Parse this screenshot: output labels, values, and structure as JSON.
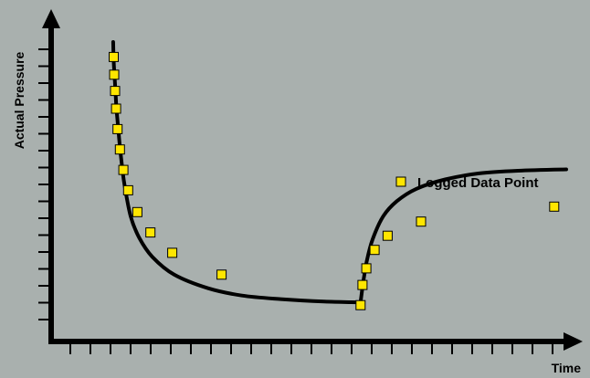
{
  "chart_data": {
    "type": "line",
    "title": "",
    "xlabel": "Time",
    "ylabel": "Actual Pressure",
    "xlim": [
      0,
      100
    ],
    "ylim": [
      0,
      100
    ],
    "grid": false,
    "legend": {
      "position": "right",
      "entries": [
        "Logged Data Point"
      ]
    },
    "ticks": {
      "x_count": 25,
      "y_count": 17,
      "x_labels": [],
      "y_labels": []
    },
    "series": [
      {
        "name": "",
        "style": "curve",
        "x": [
          6.4,
          6.5,
          6.7,
          6.9,
          7.1,
          7.5,
          8.0,
          8.7,
          10.0,
          11.8,
          14.5,
          19.0,
          26.0,
          33.0,
          41.0,
          50.0,
          57.5
        ],
        "y": [
          100,
          93,
          87,
          81,
          75,
          67,
          58,
          48,
          36,
          28,
          21,
          14.5,
          9.5,
          6.8,
          5.5,
          4.6,
          4.3
        ]
      },
      {
        "name": "",
        "style": "curve",
        "x": [
          57.5,
          58.0,
          58.8,
          60.0,
          62.2,
          65.0,
          69.0,
          75.0,
          82.0,
          90.0,
          100.0
        ],
        "y": [
          4.3,
          11.0,
          19.5,
          27.5,
          36.0,
          41.5,
          46.0,
          49.5,
          51.7,
          52.7,
          53.2
        ]
      },
      {
        "name": "Logged Data Point",
        "style": "markers",
        "x": [
          6.5,
          6.6,
          6.8,
          7.0,
          7.3,
          7.8,
          8.5,
          9.5,
          11.4,
          14.1,
          18.6,
          28.8,
          57.5,
          57.9,
          58.7,
          60.4,
          63.1,
          70.0,
          97.5
        ],
        "y": [
          94.5,
          88,
          82,
          75.5,
          68,
          60.5,
          53,
          45.5,
          37.5,
          30,
          22.5,
          14.5,
          3.3,
          10.7,
          16.8,
          23.6,
          28.8,
          34,
          39.5
        ]
      }
    ],
    "colors": {
      "background": "#a9b0ae",
      "line": "#000000",
      "marker_fill": "#ffe600",
      "marker_stroke": "#000000"
    }
  }
}
